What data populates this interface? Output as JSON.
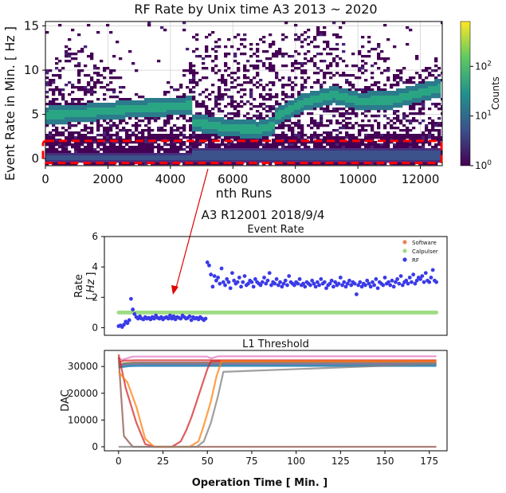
{
  "chart_data": [
    {
      "type": "heatmap",
      "title": "RF Rate by Unix time A3 2013 ~ 2020",
      "xlabel": "nth Runs",
      "ylabel": "Event Rate in Min. [ Hz ]",
      "xlim": [
        0,
        12700
      ],
      "ylim": [
        -0.8,
        15.5
      ],
      "xticks": [
        0,
        2000,
        4000,
        6000,
        8000,
        10000,
        12000
      ],
      "yticks": [
        0,
        5,
        10,
        15
      ],
      "grid": true,
      "colorbar": {
        "label": "Counts",
        "scale": "log",
        "range": [
          1,
          800
        ],
        "ticks": [
          "10^0",
          "10^1",
          "10^2"
        ],
        "colors": [
          "#440154",
          "#3b528b",
          "#21918c",
          "#5ec962",
          "#fde725"
        ]
      },
      "bands": [
        {
          "x": [
            0,
            1000,
            3000,
            4300,
            4700
          ],
          "y": [
            5.0,
            5.2,
            5.8,
            6.0,
            6.2
          ]
        },
        {
          "x": [
            4700,
            5800,
            6800,
            7300
          ],
          "y": [
            4.2,
            3.6,
            3.4,
            3.9
          ]
        },
        {
          "x": [
            7300,
            8200,
            9200,
            10000,
            11000,
            12600
          ],
          "y": [
            4.8,
            6.4,
            7.3,
            6.6,
            6.7,
            8.1
          ]
        },
        {
          "x": [
            4700,
            8000,
            9000,
            12600
          ],
          "y": [
            0.8,
            0.8,
            0.9,
            0.9
          ]
        },
        {
          "x": [
            0,
            12600
          ],
          "y": [
            0.35,
            0.35
          ]
        }
      ],
      "highlight": {
        "x": [
          0,
          12600
        ],
        "y": [
          -0.5,
          2.0
        ],
        "style": "red-dashed"
      }
    },
    {
      "type": "scatter",
      "subtitle": "A3 R12001 2018/9/4",
      "title": "Event Rate",
      "xlabel": "Operation Time [ Min. ]",
      "ylabel": "Rate [ Hz ]",
      "xlim": [
        -8,
        185
      ],
      "ylim": [
        -0.5,
        6
      ],
      "yticks": [
        0,
        2,
        4,
        6
      ],
      "legend_position": "top-right",
      "series": [
        {
          "name": "Software",
          "color": "#e8855a",
          "x": [],
          "y": []
        },
        {
          "name": "Calpulser",
          "color": "#9ddc83",
          "x_range": [
            0,
            179
          ],
          "y": 1.0
        },
        {
          "name": "RF",
          "color": "#3a3ae8",
          "x": [
            0,
            1,
            2,
            3,
            4,
            5,
            6,
            7,
            8,
            9,
            10,
            11,
            12,
            13,
            14,
            15,
            16,
            17,
            18,
            19,
            20,
            21,
            22,
            23,
            24,
            25,
            26,
            27,
            28,
            29,
            30,
            31,
            32,
            33,
            34,
            35,
            36,
            37,
            38,
            39,
            40,
            41,
            42,
            43,
            44,
            45,
            46,
            47,
            48,
            49,
            50,
            51,
            52,
            53,
            54,
            55,
            56,
            57,
            58,
            59,
            60,
            61,
            62,
            63,
            64,
            65,
            66,
            67,
            68,
            69,
            70,
            71,
            72,
            73,
            74,
            75,
            76,
            77,
            78,
            79,
            80,
            81,
            82,
            83,
            84,
            85,
            86,
            87,
            88,
            89,
            90,
            91,
            92,
            93,
            94,
            95,
            96,
            97,
            98,
            99,
            100,
            101,
            102,
            103,
            104,
            105,
            106,
            107,
            108,
            109,
            110,
            111,
            112,
            113,
            114,
            115,
            116,
            117,
            118,
            119,
            120,
            121,
            122,
            123,
            124,
            125,
            126,
            127,
            128,
            129,
            130,
            131,
            132,
            133,
            134,
            135,
            136,
            137,
            138,
            139,
            140,
            141,
            142,
            143,
            144,
            145,
            146,
            147,
            148,
            149,
            150,
            151,
            152,
            153,
            154,
            155,
            156,
            157,
            158,
            159,
            160,
            161,
            162,
            163,
            164,
            165,
            166,
            167,
            168,
            169,
            170,
            171,
            172,
            173,
            174,
            175,
            176,
            177,
            178,
            179
          ],
          "y": [
            0.1,
            0.15,
            0.05,
            0.2,
            0.4,
            0.3,
            0.5,
            1.9,
            1.2,
            0.9,
            0.7,
            0.6,
            0.75,
            0.6,
            0.55,
            0.7,
            0.6,
            0.65,
            0.55,
            0.7,
            0.6,
            0.8,
            0.65,
            0.6,
            0.7,
            0.55,
            0.65,
            0.7,
            0.6,
            0.8,
            0.6,
            0.75,
            0.55,
            0.7,
            0.65,
            0.6,
            0.8,
            0.7,
            0.6,
            0.65,
            0.75,
            0.5,
            0.7,
            0.6,
            0.65,
            0.55,
            0.7,
            0.6,
            0.5,
            0.6,
            4.3,
            4.1,
            3.5,
            2.7,
            3.4,
            3.1,
            3.3,
            2.9,
            3.9,
            3.0,
            2.8,
            3.2,
            3.0,
            2.6,
            3.6,
            3.1,
            2.9,
            3.0,
            3.3,
            2.7,
            3.0,
            3.4,
            2.8,
            2.9,
            3.1,
            3.0,
            2.7,
            3.2,
            3.0,
            2.9,
            2.8,
            3.0,
            3.3,
            2.9,
            3.1,
            3.6,
            2.8,
            3.0,
            2.9,
            3.2,
            2.8,
            3.0,
            2.7,
            2.9,
            3.1,
            2.8,
            3.4,
            3.0,
            2.9,
            2.8,
            3.0,
            2.9,
            3.2,
            2.8,
            2.9,
            2.7,
            3.0,
            2.9,
            2.8,
            3.1,
            2.9,
            2.7,
            3.0,
            2.8,
            3.2,
            2.9,
            3.0,
            2.6,
            2.8,
            2.9,
            3.1,
            2.7,
            3.0,
            2.8,
            2.9,
            3.3,
            2.8,
            3.0,
            2.7,
            2.9,
            3.1,
            2.8,
            3.0,
            2.9,
            2.2,
            2.8,
            3.0,
            2.7,
            2.9,
            2.8,
            3.1,
            2.9,
            2.7,
            3.0,
            2.8,
            3.2,
            2.6,
            3.0,
            2.9,
            2.8,
            3.3,
            2.9,
            3.0,
            2.8,
            3.1,
            2.7,
            3.0,
            3.2,
            2.9,
            3.4,
            2.8,
            3.0,
            3.1,
            2.9,
            3.3,
            3.0,
            3.5,
            2.9,
            3.1,
            3.3,
            3.2,
            3.4,
            3.0,
            3.6,
            3.1,
            3.0,
            3.3,
            3.8,
            3.1,
            3.0
          ]
        }
      ]
    },
    {
      "type": "line",
      "title": "L1 Threshold",
      "xlabel": "Operation Time [ Min. ]",
      "ylabel": "DAC",
      "xlim": [
        -8,
        185
      ],
      "ylim": [
        -1500,
        36000
      ],
      "xticks": [
        0,
        25,
        50,
        75,
        100,
        125,
        150,
        175
      ],
      "yticks": [
        0,
        10000,
        20000,
        30000
      ],
      "series": [
        {
          "color": "#e377c2",
          "x": [
            0,
            2,
            8,
            50,
            52,
            56,
            179
          ],
          "y": [
            33000,
            32500,
            33700,
            33700,
            33000,
            33800,
            33800
          ]
        },
        {
          "color": "#d62728",
          "x": [
            0,
            3,
            10,
            179
          ],
          "y": [
            31500,
            32200,
            32300,
            32300
          ]
        },
        {
          "color": "#8c564b",
          "x": [
            0,
            3,
            8,
            179
          ],
          "y": [
            30500,
            31200,
            31500,
            31500
          ]
        },
        {
          "color": "#7f7f7f",
          "x": [
            0,
            5,
            12,
            179
          ],
          "y": [
            31000,
            30500,
            30800,
            30800
          ]
        },
        {
          "color": "#bcbd22",
          "x": [
            0,
            4,
            10,
            179
          ],
          "y": [
            30000,
            30300,
            30600,
            30600
          ]
        },
        {
          "color": "#17becf",
          "x": [
            0,
            4,
            10,
            179
          ],
          "y": [
            29800,
            30200,
            30400,
            30400
          ]
        },
        {
          "color": "#1f77b4",
          "x": [
            0,
            6,
            12,
            179
          ],
          "y": [
            29600,
            30100,
            30200,
            30200
          ]
        },
        {
          "color": "#2ca02c",
          "x": [
            0,
            3,
            8,
            179
          ],
          "y": [
            30200,
            30800,
            31000,
            31000
          ]
        },
        {
          "color": "#9467bd",
          "x": [
            0,
            5,
            10,
            179
          ],
          "y": [
            30400,
            30700,
            30900,
            30900
          ]
        },
        {
          "color": "#8c564b",
          "x": [
            0,
            3,
            8,
            179
          ],
          "y": [
            33500,
            4000,
            0,
            0
          ]
        },
        {
          "color": "#d62728",
          "x": [
            0,
            4,
            10,
            15,
            20,
            25,
            30,
            35,
            38,
            41,
            44,
            47,
            50,
            52,
            179
          ],
          "y": [
            34500,
            22000,
            9000,
            1000,
            0,
            0,
            0,
            2000,
            6000,
            11000,
            17000,
            23000,
            29000,
            32000,
            32000
          ]
        },
        {
          "color": "#ff7f0e",
          "x": [
            0,
            5,
            10,
            15,
            20,
            25,
            30,
            35,
            40,
            45,
            48,
            52,
            55,
            58,
            179
          ],
          "y": [
            28000,
            24000,
            15000,
            3000,
            0,
            0,
            0,
            0,
            0,
            2000,
            8000,
            17000,
            26000,
            32000,
            32000
          ]
        },
        {
          "color": "#7f7f7f",
          "x": [
            0,
            10,
            15,
            20,
            25,
            30,
            35,
            40,
            44,
            48,
            52,
            56,
            59,
            179
          ],
          "y": [
            0,
            0,
            0,
            0,
            0,
            0,
            0,
            0,
            0,
            2000,
            9000,
            19000,
            28000,
            31000
          ]
        }
      ]
    }
  ],
  "annotation_arrow": true
}
